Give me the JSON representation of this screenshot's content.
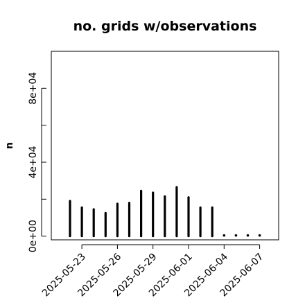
{
  "chart_data": {
    "type": "bar",
    "title": "no. grids w/observations",
    "xlabel": "",
    "ylabel": "n",
    "ylim": [
      -2000,
      100000
    ],
    "yticks": [
      0,
      20000,
      40000,
      60000,
      80000
    ],
    "ytick_labels": [
      "0e+00",
      "",
      "4e+04",
      "",
      "8e+04"
    ],
    "xticks": [
      {
        "label": "2025-05-23",
        "color": "#000000"
      },
      {
        "label": "2025-05-26",
        "color": "#000000"
      },
      {
        "label": "2025-05-29",
        "color": "#228b22"
      },
      {
        "label": "2025-06-01",
        "color": "#000000"
      },
      {
        "label": "2025-06-04",
        "color": "#000000"
      },
      {
        "label": "2025-06-07",
        "color": "#000000"
      }
    ],
    "categories": [
      "2025-05-22",
      "2025-05-23",
      "2025-05-24",
      "2025-05-25",
      "2025-05-26",
      "2025-05-27",
      "2025-05-28",
      "2025-05-29",
      "2025-05-30",
      "2025-05-31",
      "2025-06-01",
      "2025-06-02",
      "2025-06-03",
      "2025-06-04",
      "2025-06-05",
      "2025-06-06",
      "2025-06-07"
    ],
    "values": [
      19000,
      15500,
      14500,
      12500,
      17500,
      18000,
      24500,
      23500,
      21500,
      26500,
      21000,
      15500,
      15500,
      600,
      600,
      600,
      600
    ],
    "grid": false,
    "legend": "none",
    "bar_color": "#000000"
  }
}
